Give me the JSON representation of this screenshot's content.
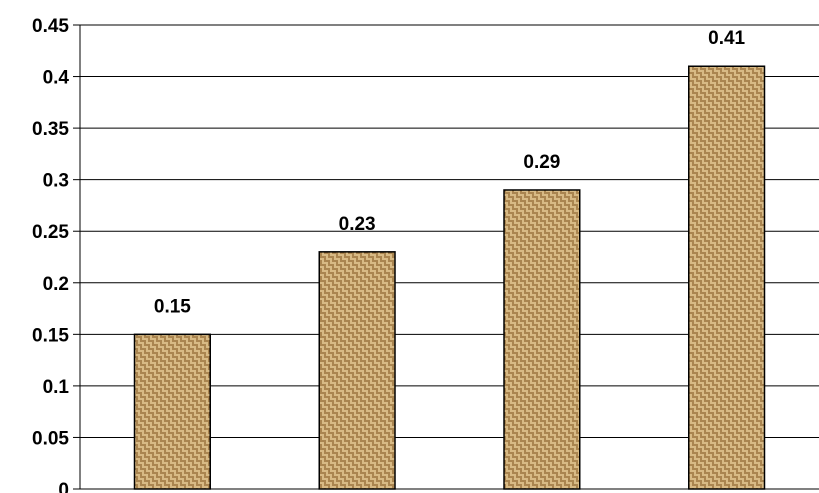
{
  "chart_data": {
    "type": "bar",
    "categories": [
      "",
      "",
      "",
      ""
    ],
    "values": [
      0.15,
      0.23,
      0.29,
      0.41
    ],
    "data_labels": [
      "0.15",
      "0.23",
      "0.29",
      "0.41"
    ],
    "title": "",
    "xlabel": "",
    "ylabel": "",
    "ylim": [
      0,
      0.45
    ],
    "y_ticks": [
      0,
      0.05,
      0.1,
      0.15,
      0.2,
      0.25,
      0.3,
      0.35,
      0.4,
      0.45
    ],
    "y_tick_labels": [
      "0",
      "0.05",
      "0.1",
      "0.15",
      "0.2",
      "0.25",
      "0.3",
      "0.35",
      "0.4",
      "0.45"
    ],
    "grid": "horizontal",
    "legend": "none",
    "bar_fill": "burlap-texture",
    "colors": {
      "bar_base": "#c9a56b",
      "bar_weave_dark": "#8a6534",
      "bar_weave_light": "#e6cf9f",
      "bar_border": "#000000",
      "grid": "#000000",
      "axis": "#000000"
    }
  }
}
